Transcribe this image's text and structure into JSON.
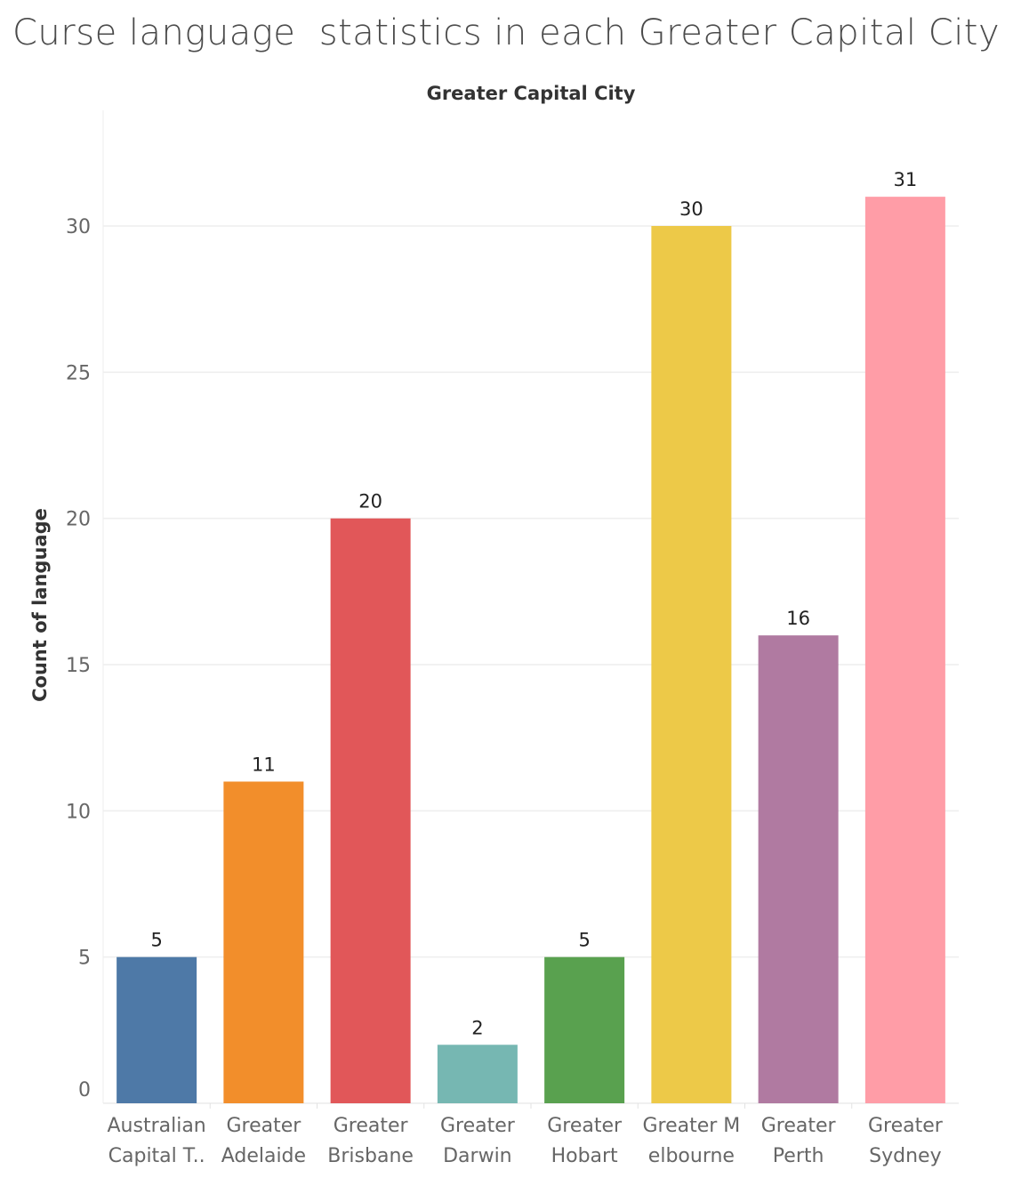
{
  "title": "Curse language  statistics in each Greater Capital City",
  "chart_data": {
    "type": "bar",
    "title": "Curse language  statistics in each Greater Capital City",
    "column_header": "Greater Capital City",
    "ylabel": "Count of language",
    "xlabel": "",
    "categories": [
      [
        "Australian",
        "Capital T.."
      ],
      [
        "Greater",
        "Adelaide"
      ],
      [
        "Greater",
        "Brisbane"
      ],
      [
        "Greater",
        "Darwin"
      ],
      [
        "Greater",
        "Hobart"
      ],
      [
        "Greater M",
        "elbourne"
      ],
      [
        "Greater",
        "Perth"
      ],
      [
        "Greater",
        "Sydney"
      ]
    ],
    "values": [
      5,
      11,
      20,
      2,
      5,
      30,
      16,
      31
    ],
    "colors": [
      "#4e79a7",
      "#f28e2b",
      "#e15759",
      "#76b7b2",
      "#59a14f",
      "#edc948",
      "#b07aa1",
      "#ff9da7"
    ],
    "ylim": [
      0,
      33
    ],
    "yticks": [
      0,
      5,
      10,
      15,
      20,
      25,
      30
    ],
    "grid": true,
    "legend": "none"
  }
}
